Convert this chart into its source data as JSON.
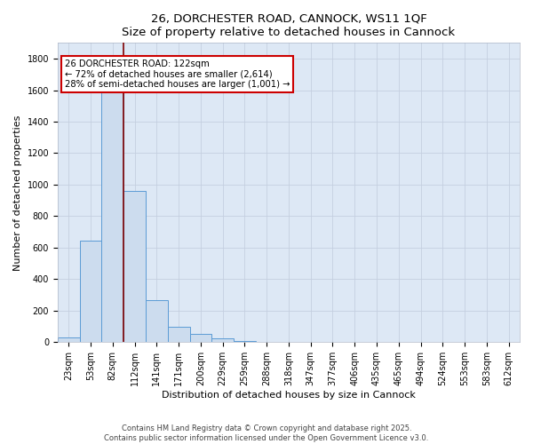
{
  "title": "26, DORCHESTER ROAD, CANNOCK, WS11 1QF",
  "subtitle": "Size of property relative to detached houses in Cannock",
  "xlabel": "Distribution of detached houses by size in Cannock",
  "ylabel": "Number of detached properties",
  "categories": [
    "23sqm",
    "53sqm",
    "82sqm",
    "112sqm",
    "141sqm",
    "171sqm",
    "200sqm",
    "229sqm",
    "259sqm",
    "288sqm",
    "318sqm",
    "347sqm",
    "377sqm",
    "406sqm",
    "435sqm",
    "465sqm",
    "494sqm",
    "524sqm",
    "553sqm",
    "583sqm",
    "612sqm"
  ],
  "values": [
    30,
    645,
    1690,
    960,
    265,
    100,
    50,
    25,
    8,
    0,
    0,
    0,
    2,
    0,
    0,
    0,
    0,
    0,
    0,
    0,
    0
  ],
  "bar_color": "#ccdcee",
  "bar_edge_color": "#5b9bd5",
  "background_color": "#dde8f5",
  "grid_color": "#c5cfe0",
  "annotation_box_color": "#cc0000",
  "annotation_text": "26 DORCHESTER ROAD: 122sqm\n← 72% of detached houses are smaller (2,614)\n28% of semi-detached houses are larger (1,001) →",
  "vline_x_index": 2.5,
  "vline_color": "#800000",
  "ylim": [
    0,
    1900
  ],
  "yticks": [
    0,
    200,
    400,
    600,
    800,
    1000,
    1200,
    1400,
    1600,
    1800
  ],
  "footer_line1": "Contains HM Land Registry data © Crown copyright and database right 2025.",
  "footer_line2": "Contains public sector information licensed under the Open Government Licence v3.0.",
  "title_fontsize": 9.5,
  "tick_fontsize": 7,
  "label_fontsize": 8
}
